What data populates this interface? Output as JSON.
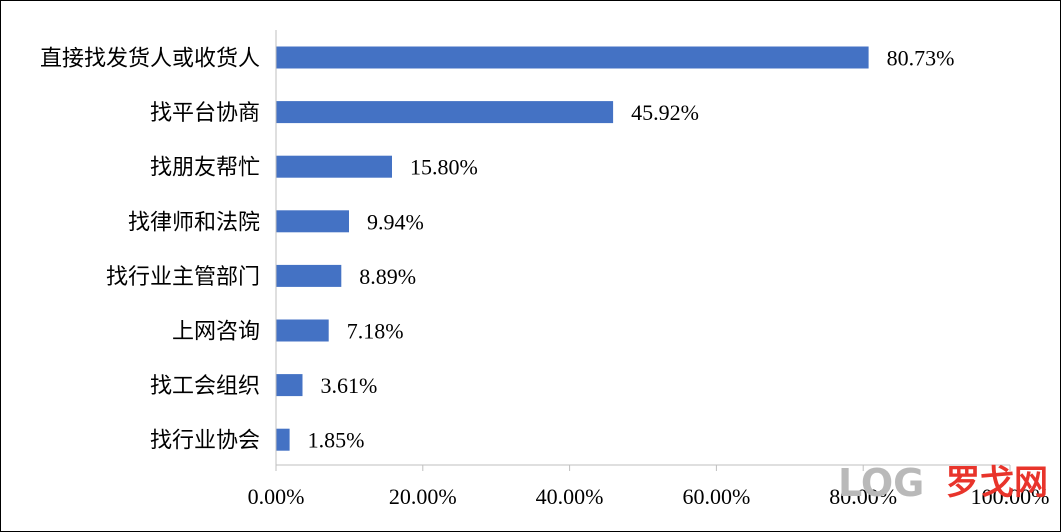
{
  "chart_data": {
    "type": "bar",
    "orientation": "horizontal",
    "categories": [
      "直接找发货人或收货人",
      "找平台协商",
      "找朋友帮忙",
      "找律师和法院",
      "找行业主管部门",
      "上网咨询",
      "找工会组织",
      "找行业协会"
    ],
    "values": [
      80.73,
      45.92,
      15.8,
      9.94,
      8.89,
      7.18,
      3.61,
      1.85
    ],
    "value_labels": [
      "80.73%",
      "45.92%",
      "15.80%",
      "9.94%",
      "8.89%",
      "7.18%",
      "3.61%",
      "1.85%"
    ],
    "xlim": [
      0,
      100
    ],
    "xticks": [
      0,
      20,
      40,
      60,
      80,
      100
    ],
    "xtick_labels": [
      "0.00%",
      "20.00%",
      "40.00%",
      "60.00%",
      "80.00%",
      "100.00%"
    ],
    "bar_color": "#4472c4",
    "grid": false,
    "legend": "none"
  },
  "watermark": {
    "logo": "LOG",
    "text": "罗戈网",
    "logo_color": "#b9b9b9",
    "text_color": "#e8342b"
  }
}
